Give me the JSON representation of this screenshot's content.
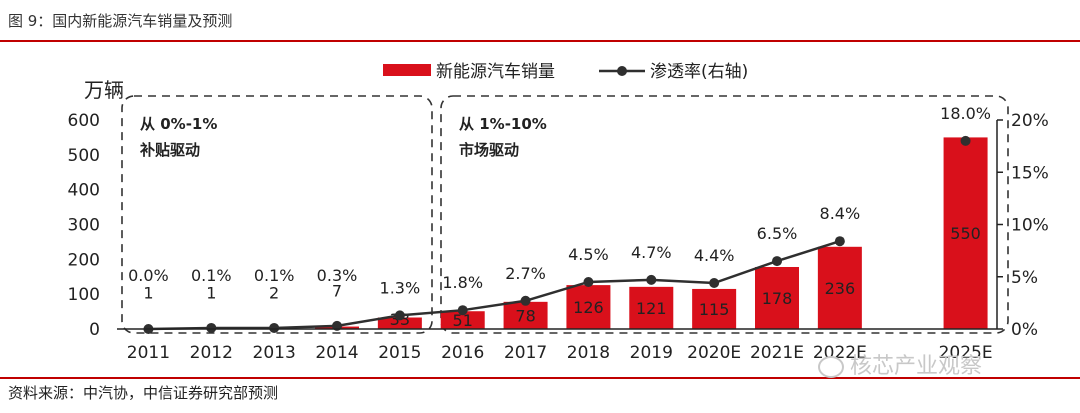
{
  "figure_title": "图 9：国内新能源汽车销量及预测",
  "source_note": "资料来源：中汽协，中信证券研究部预测",
  "watermark": "核芯产业观察",
  "colors": {
    "bar": "#d9101b",
    "line": "#2f2f2f",
    "rule": "#c00000"
  },
  "chart_data": {
    "type": "bar+line",
    "ylabel_left": "万辆",
    "ylim_left": [
      0,
      600
    ],
    "yticks_left": [
      "0",
      "100",
      "200",
      "300",
      "400",
      "500",
      "600"
    ],
    "ylim_right": [
      0,
      20
    ],
    "yticks_right": [
      "0%",
      "5%",
      "10%",
      "15%",
      "20%"
    ],
    "categories": [
      "2011",
      "2012",
      "2013",
      "2014",
      "2015",
      "2016",
      "2017",
      "2018",
      "2019",
      "2020E",
      "2021E",
      "2022E",
      "",
      "2025E"
    ],
    "series": [
      {
        "name": "新能源汽车销量",
        "type": "bar",
        "values": [
          1,
          1,
          2,
          7,
          33,
          51,
          78,
          126,
          121,
          115,
          178,
          236,
          null,
          550
        ],
        "labels": [
          "1",
          "1",
          "2",
          "7",
          "33",
          "51",
          "78",
          "126",
          "121",
          "115",
          "178",
          "236",
          "",
          "550"
        ]
      },
      {
        "name": "渗透率(右轴)",
        "type": "line",
        "values": [
          0.0,
          0.1,
          0.1,
          0.3,
          1.3,
          1.8,
          2.7,
          4.5,
          4.7,
          4.4,
          6.5,
          8.4,
          null,
          18.0
        ],
        "labels": [
          "0.0%",
          "0.1%",
          "0.1%",
          "0.3%",
          "1.3%",
          "1.8%",
          "2.7%",
          "4.5%",
          "4.7%",
          "4.4%",
          "6.5%",
          "8.4%",
          "",
          "18.0%"
        ]
      }
    ],
    "legend": {
      "position": "top-center",
      "items": [
        "新能源汽车销量",
        "渗透率(右轴)"
      ]
    },
    "annotations": [
      {
        "line1": "从 0%-1%",
        "line2": "补贴驱动"
      },
      {
        "line1": "从 1%-10%",
        "line2": "市场驱动"
      }
    ],
    "grid": false
  }
}
